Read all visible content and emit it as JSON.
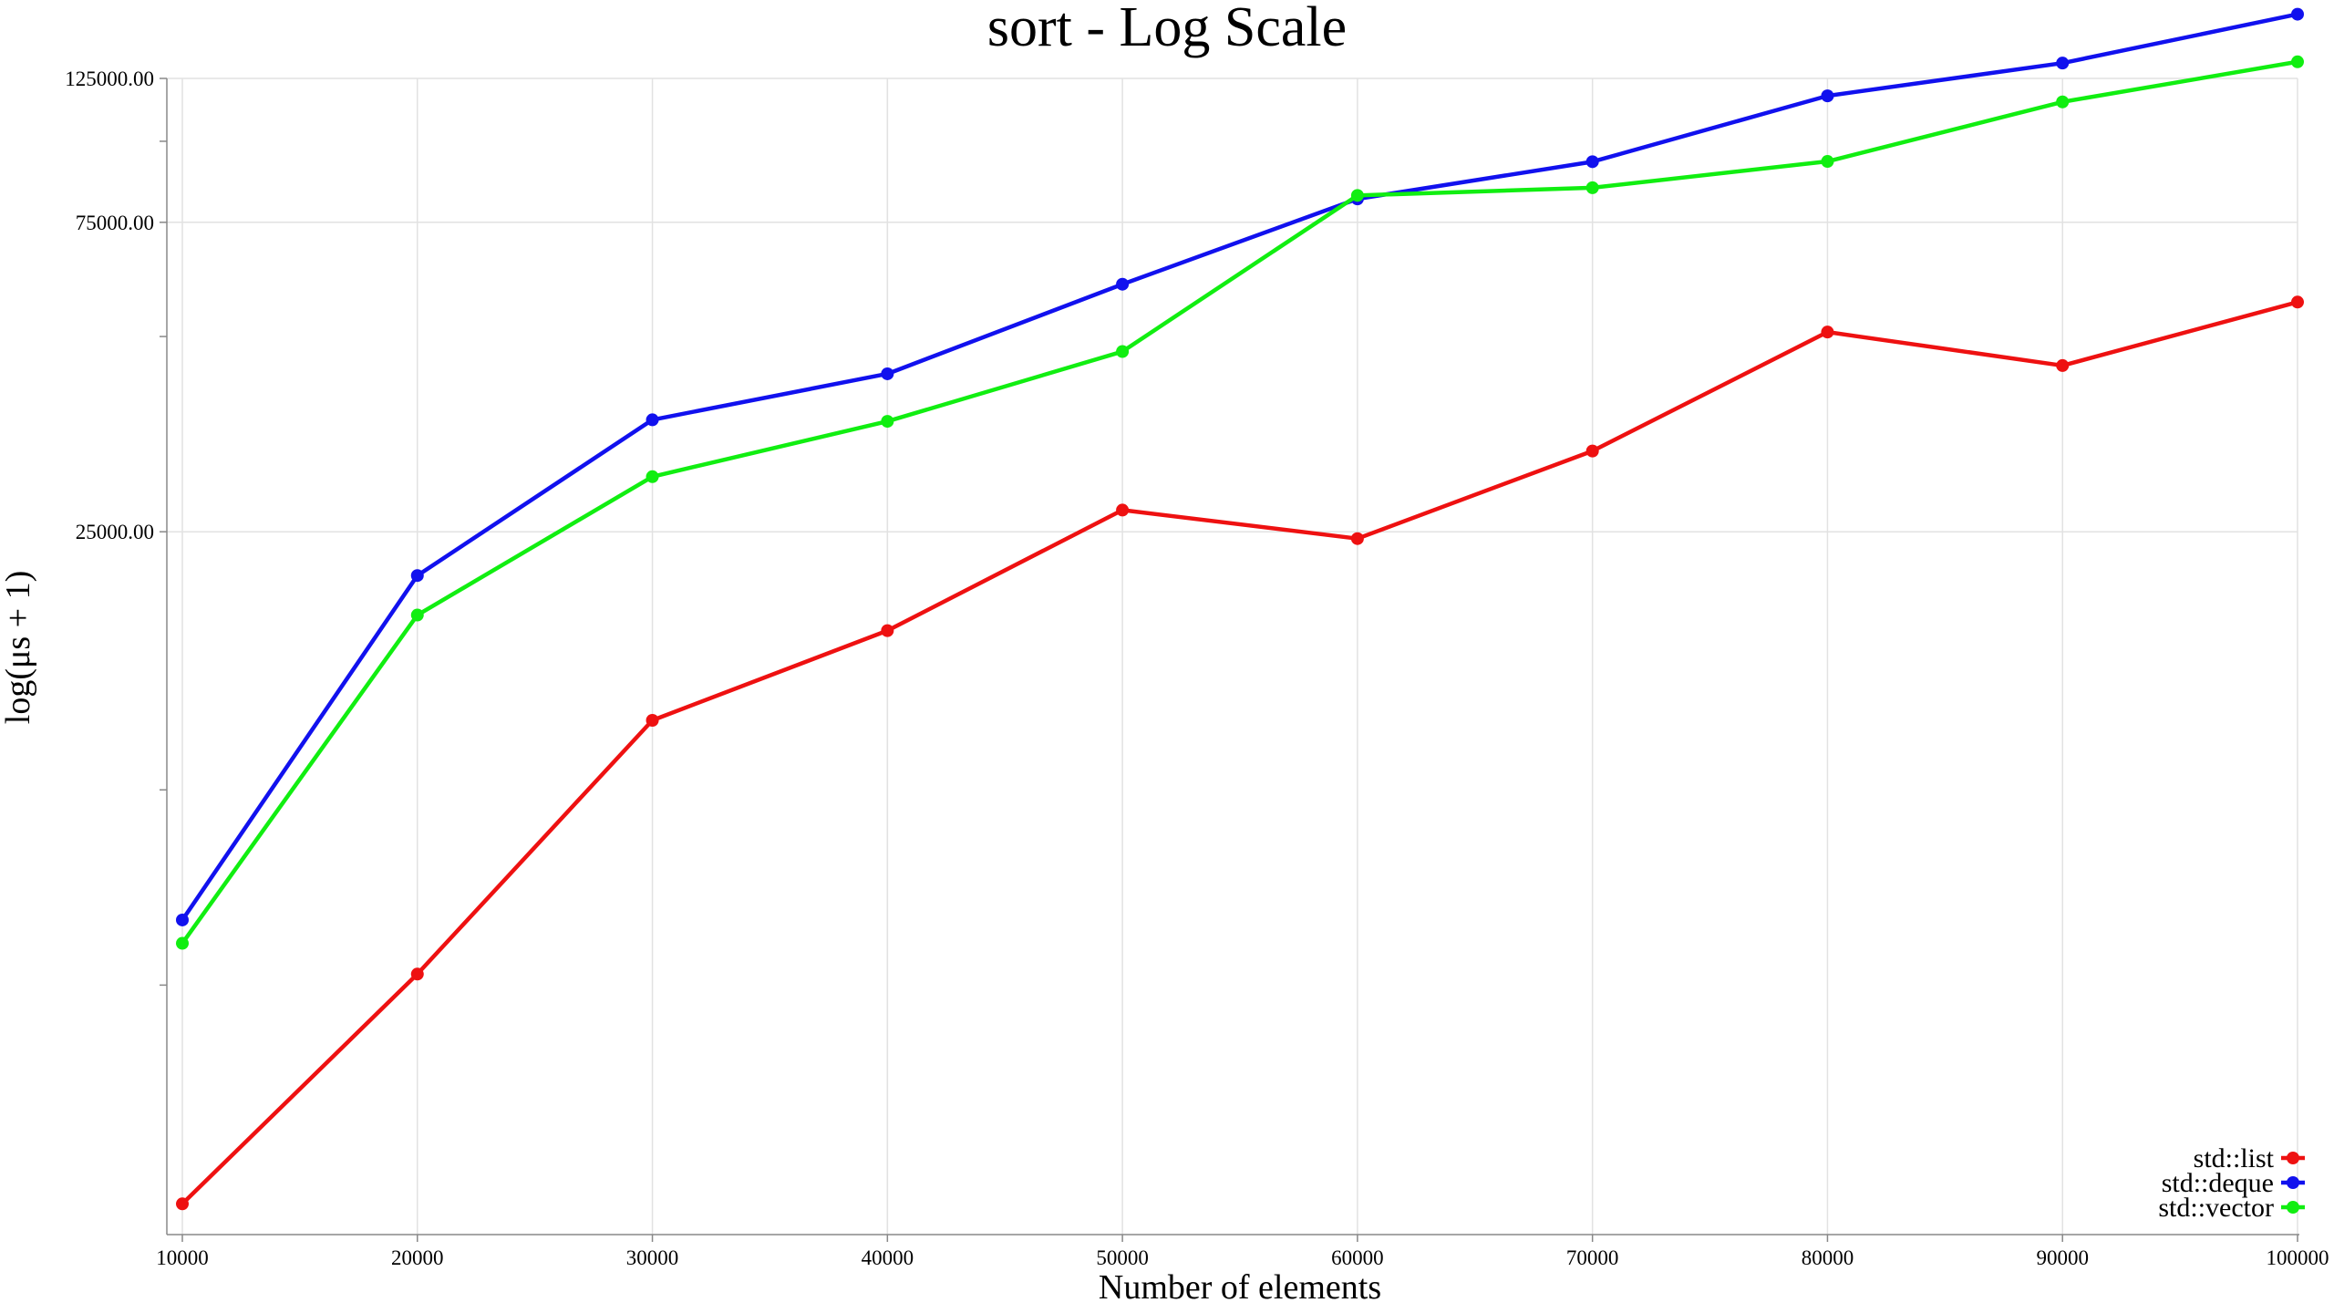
{
  "chart_data": {
    "type": "line",
    "title": "sort - Log Scale",
    "xlabel": "Number of elements",
    "ylabel": "log(μs + 1)",
    "y_scale": "log",
    "y_ticks": [
      25000,
      75000,
      125000
    ],
    "y_tick_labels": [
      "25000.00",
      "75000.00",
      "125000.00"
    ],
    "x_ticks": [
      10000,
      20000,
      30000,
      40000,
      50000,
      60000,
      70000,
      80000,
      90000,
      100000
    ],
    "x_tick_labels": [
      "10000",
      "20000",
      "30000",
      "40000",
      "50000",
      "60000",
      "70000",
      "80000",
      "90000",
      "100000"
    ],
    "xlim": [
      10000,
      100000
    ],
    "ylim": [
      2200,
      125000
    ],
    "grid": true,
    "legend_position": "bottom-right",
    "x": [
      10000,
      20000,
      30000,
      40000,
      50000,
      60000,
      70000,
      80000,
      90000,
      100000
    ],
    "series": [
      {
        "name": "std::list",
        "color": "#ee1111",
        "values": [
          2300,
          5200,
          12800,
          17600,
          27000,
          24400,
          33300,
          50800,
          45100,
          56500
        ]
      },
      {
        "name": "std::deque",
        "color": "#1111ee",
        "values": [
          6300,
          21400,
          37200,
          43800,
          60200,
          81500,
          93000,
          117500,
          132000,
          157000
        ]
      },
      {
        "name": "std::vector",
        "color": "#11ee11",
        "values": [
          5800,
          18600,
          30400,
          37000,
          47400,
          82500,
          84800,
          93100,
          115000,
          132600
        ]
      }
    ]
  }
}
